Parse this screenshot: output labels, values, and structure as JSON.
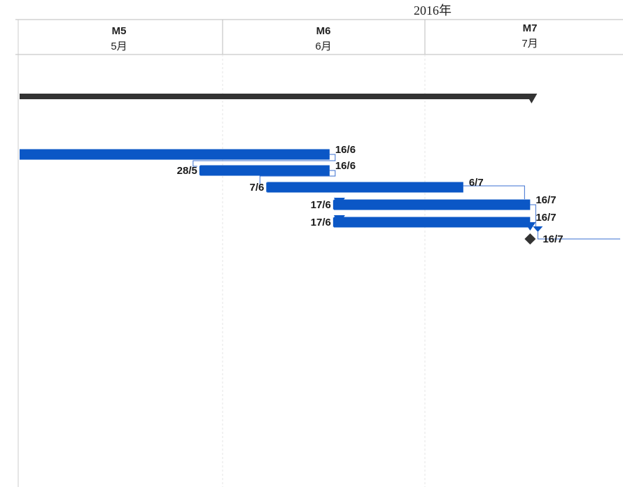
{
  "timeline": {
    "year": "2016年",
    "months": [
      {
        "code": "M5",
        "name": "5月"
      },
      {
        "code": "M6",
        "name": "6月"
      },
      {
        "code": "M7",
        "name": "7月"
      }
    ]
  },
  "chart_data": {
    "type": "gantt",
    "year": 2016,
    "summary_task": {
      "start": "2016-05-01",
      "end": "2016-07-16"
    },
    "tasks": [
      {
        "start": "2016-05-01",
        "end": "2016-06-16",
        "start_label": "",
        "end_label": "16/6"
      },
      {
        "start": "2016-05-28",
        "end": "2016-06-16",
        "start_label": "28/5",
        "end_label": "16/6"
      },
      {
        "start": "2016-06-07",
        "end": "2016-07-06",
        "start_label": "7/6",
        "end_label": "6/7"
      },
      {
        "start": "2016-06-17",
        "end": "2016-07-16",
        "start_label": "17/6",
        "end_label": "16/7"
      },
      {
        "start": "2016-06-17",
        "end": "2016-07-16",
        "start_label": "17/6",
        "end_label": "16/7"
      }
    ],
    "milestone": {
      "date": "2016-07-16",
      "label": "16/7"
    },
    "dependencies": [
      [
        1,
        2
      ],
      [
        1,
        3
      ],
      [
        3,
        4
      ],
      [
        3,
        5
      ],
      [
        4,
        5
      ],
      [
        5,
        "milestone"
      ]
    ],
    "colors": {
      "task": "#0b57c6",
      "summary": "#333333",
      "link": "#3a6fd0",
      "milestone": "#333333"
    }
  }
}
